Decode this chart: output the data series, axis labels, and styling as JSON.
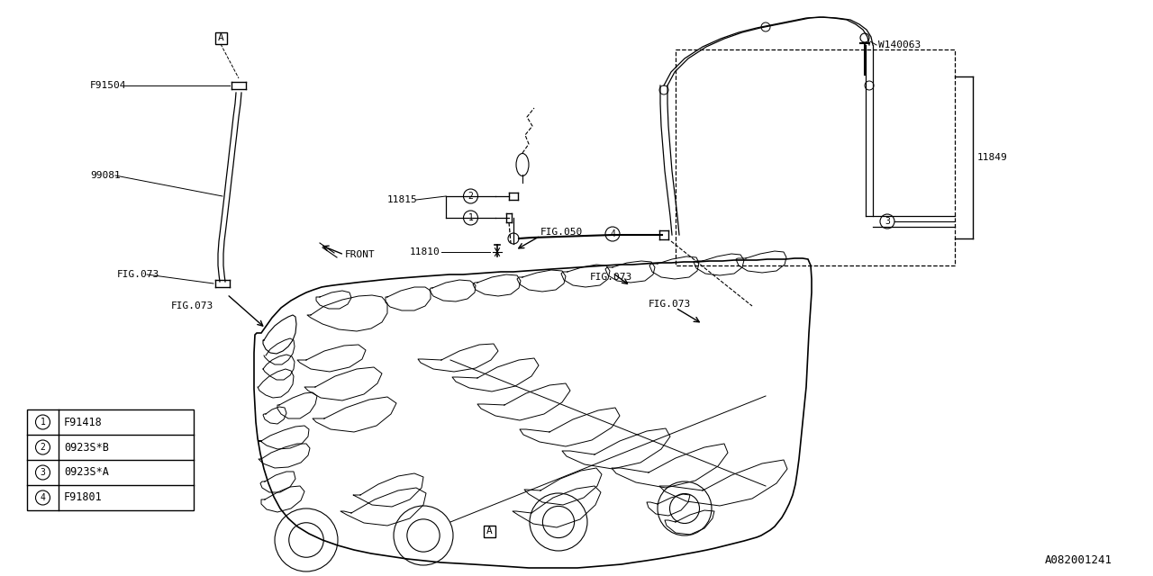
{
  "background_color": "#ffffff",
  "line_color": "#000000",
  "diagram_id": "A082001241",
  "legend_items": [
    {
      "num": "1",
      "code": "F91418"
    },
    {
      "num": "2",
      "code": "0923S*B"
    },
    {
      "num": "3",
      "code": "0923S*A"
    },
    {
      "num": "4",
      "code": "F91801"
    }
  ]
}
